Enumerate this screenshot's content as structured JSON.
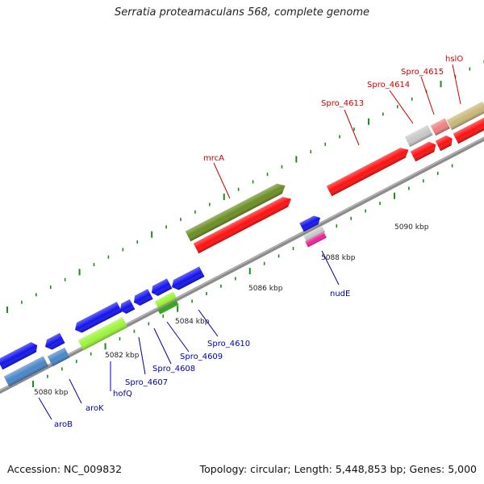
{
  "title": "Serratia proteamaculans 568, complete genome",
  "footer": {
    "accession": "Accession: NC_009832",
    "summary": "Topology: circular; Length: 5,448,853 bp; Genes: 5,000"
  },
  "colors": {
    "backbone": "#8c8c8c",
    "tick": "#1d8a1d",
    "label_forward": "#cc0000",
    "label_reverse": "#0000aa",
    "red": "#ff1010",
    "olive": "#6b8e23",
    "blue": "#1414ee",
    "steelblue": "#4a86c8",
    "lime": "#9cf53a",
    "green": "#3aa623",
    "grey": "#c8c8c8",
    "pink": "#f08080",
    "khaki": "#c8b878",
    "magenta": "#ee2299"
  },
  "kbp_labels": [
    "5080 kbp",
    "5082 kbp",
    "5084 kbp",
    "5086 kbp",
    "5088 kbp",
    "5090 kbp"
  ],
  "gene_labels": {
    "forward": [
      "mrcA",
      "Spro_4613",
      "Spro_4614",
      "Spro_4615",
      "hslO"
    ],
    "reverse": [
      "aroB",
      "aroK",
      "hofQ",
      "Spro_4607",
      "Spro_4608",
      "Spro_4609",
      "Spro_4610",
      "nudE"
    ]
  }
}
